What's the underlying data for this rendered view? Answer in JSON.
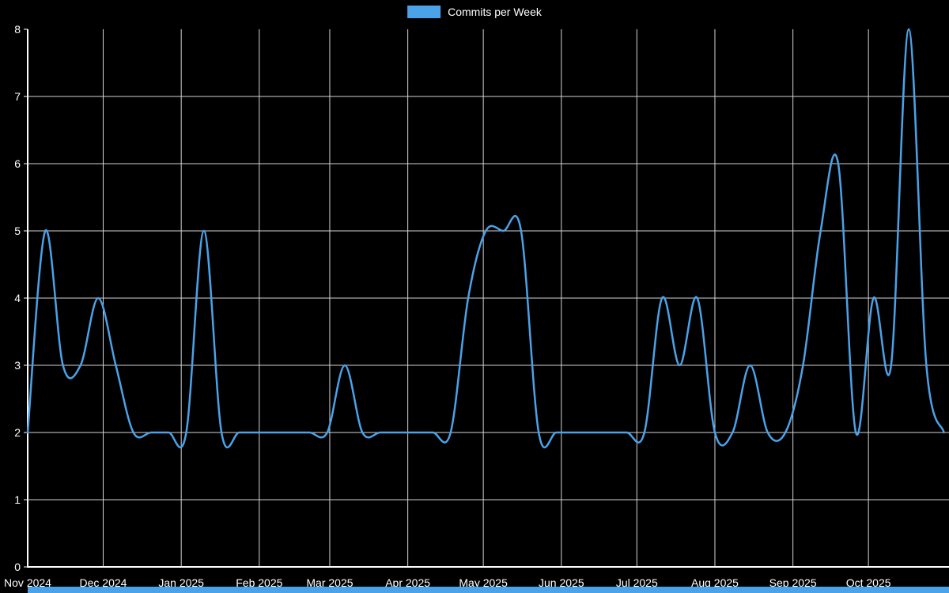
{
  "legend": {
    "label": "Commits per Week",
    "swatch_color": "#4aa2e8"
  },
  "chart_data": {
    "type": "line",
    "series_name": "Commits per Week",
    "line_color": "#4aa2e8",
    "grid_color": "#d4d4d4",
    "axis_color": "#ffffff",
    "background_color": "#000000",
    "ylim": [
      0,
      8
    ],
    "y_ticks": [
      0,
      1,
      2,
      3,
      4,
      5,
      6,
      7,
      8
    ],
    "x_months": [
      {
        "label": "Nov 2024",
        "day": 0
      },
      {
        "label": "Dec 2024",
        "day": 30
      },
      {
        "label": "Jan 2025",
        "day": 61
      },
      {
        "label": "Feb 2025",
        "day": 92
      },
      {
        "label": "Mar 2025",
        "day": 120
      },
      {
        "label": "Apr 2025",
        "day": 151
      },
      {
        "label": "May 2025",
        "day": 181
      },
      {
        "label": "Jun 2025",
        "day": 212
      },
      {
        "label": "Jul 2025",
        "day": 242
      },
      {
        "label": "Aug 2025",
        "day": 273
      },
      {
        "label": "Sep 2025",
        "day": 304
      },
      {
        "label": "Oct 2025",
        "day": 334
      }
    ],
    "total_days": 366,
    "week_step_days": 7,
    "values": [
      2,
      5,
      3,
      3,
      4,
      3,
      2,
      2,
      2,
      2,
      5,
      2,
      2,
      2,
      2,
      2,
      2,
      2,
      3,
      2,
      2,
      2,
      2,
      2,
      2,
      4,
      5,
      5,
      5,
      2,
      2,
      2,
      2,
      2,
      2,
      2,
      4,
      3,
      4,
      2,
      2,
      3,
      2,
      2,
      3,
      5,
      6,
      2,
      4,
      3,
      8,
      3,
      2
    ]
  },
  "scrollbar": {
    "color": "#4aa2e8"
  }
}
